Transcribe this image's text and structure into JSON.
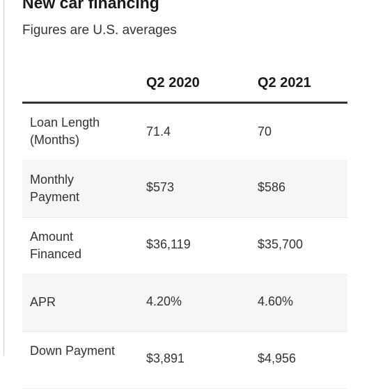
{
  "title": "New car financing",
  "subtitle": "Figures are U.S. averages",
  "chart_data": {
    "type": "table",
    "title": "New car financing",
    "subtitle": "Figures are U.S. averages",
    "columns": [
      "",
      "Q2 2020",
      "Q2 2021"
    ],
    "rows": [
      {
        "label": "Loan Length (Months)",
        "values": [
          "71.4",
          "70"
        ]
      },
      {
        "label": "Monthly Payment",
        "values": [
          "$573",
          "$586"
        ]
      },
      {
        "label": "Amount Financed",
        "values": [
          "$36,119",
          "$35,700"
        ]
      },
      {
        "label": "APR",
        "values": [
          "4.20%",
          "4.60%"
        ]
      },
      {
        "label": "Down Payment",
        "values": [
          "$3,891",
          "$4,956"
        ]
      }
    ]
  },
  "colors": {
    "header_rule": "#333333",
    "alt_row": "#f6f6f6"
  }
}
